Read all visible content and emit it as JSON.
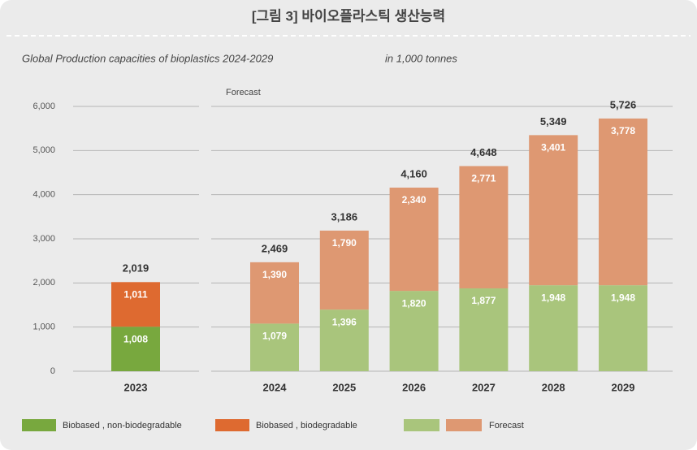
{
  "header": {
    "title": "[그림 3] 바이오플라스틱 생산능력"
  },
  "chart_data": {
    "type": "stacked_bar",
    "title": "Global Production capacities of bioplastics 2024-2029",
    "unit": "in 1,000 tonnes",
    "annotation": "Forecast",
    "categories": [
      "2023",
      "2024",
      "2025",
      "2026",
      "2027",
      "2028",
      "2029"
    ],
    "series": [
      {
        "name": "Biobased , non-biodegradable",
        "color": "#78a83e",
        "colors": [
          "#78a83e",
          "#a9c57c",
          "#a9c57c",
          "#a9c57c",
          "#a9c57c",
          "#a9c57c",
          "#a9c57c"
        ],
        "values": [
          1008,
          1079,
          1396,
          1820,
          1877,
          1948,
          1948
        ],
        "value_labels": [
          "1,008",
          "1,079",
          "1,396",
          "1,820",
          "1,877",
          "1,948",
          "1,948"
        ]
      },
      {
        "name": "Biobased , biodegradable",
        "color": "#de6a30",
        "colors": [
          "#de6a30",
          "#de9872",
          "#de9872",
          "#de9872",
          "#de9872",
          "#de9872",
          "#de9872"
        ],
        "values": [
          1011,
          1390,
          1790,
          2340,
          2771,
          3401,
          3778
        ],
        "value_labels": [
          "1,011",
          "1,390",
          "1,790",
          "2,340",
          "2,771",
          "3,401",
          "3,778"
        ]
      }
    ],
    "totals": [
      2019,
      2469,
      3186,
      4160,
      4648,
      5349,
      5726
    ],
    "total_labels": [
      "2,019",
      "2,469",
      "3,186",
      "4,160",
      "4,648",
      "5,349",
      "5,726"
    ],
    "forecast_legend": {
      "label": "Forecast",
      "colors": [
        "#a9c57c",
        "#de9872"
      ]
    },
    "ylim": [
      0,
      6000
    ],
    "yticks": [
      0,
      {
        "value": 1000,
        "label": "1,000"
      },
      {
        "value": 2000,
        "label": "2,000"
      },
      {
        "value": 3000,
        "label": "3,000"
      },
      {
        "value": 4000,
        "label": "4,000"
      },
      {
        "value": 5000,
        "label": "5,000"
      },
      {
        "value": 6000,
        "label": "6,000"
      }
    ],
    "grid": true
  }
}
